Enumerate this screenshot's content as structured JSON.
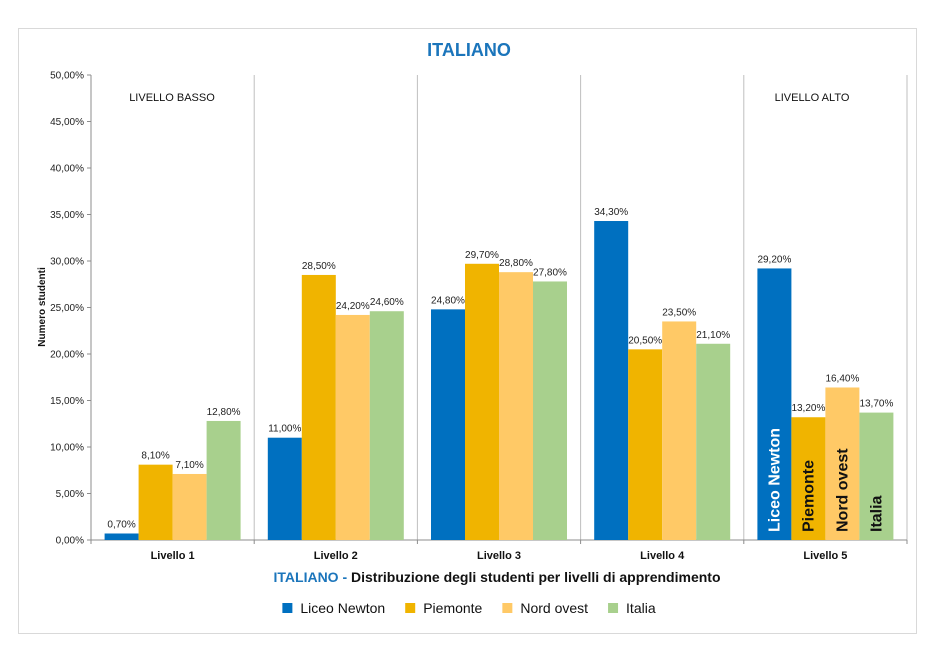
{
  "colors": {
    "accent": "#1b75bb",
    "series": [
      "#0070c0",
      "#f0b400",
      "#ffc966",
      "#a8d08d"
    ],
    "grid": "#bfbfbf",
    "axis": "#8c8c8c"
  },
  "chart_data": {
    "type": "bar",
    "title": "ITALIANO",
    "xtitle_prefix": "ITALIANO - ",
    "xtitle_main": "Distribuzione degli studenti per livelli di apprendimento",
    "ylabel": "Numero studenti",
    "ylim": [
      0,
      50
    ],
    "yticks": [
      "0,00%",
      "5,00%",
      "10,00%",
      "15,00%",
      "20,00%",
      "25,00%",
      "30,00%",
      "35,00%",
      "40,00%",
      "45,00%",
      "50,00%"
    ],
    "categories": [
      "Livello 1",
      "Livello 2",
      "Livello 3",
      "Livello 4",
      "Livello 5"
    ],
    "series": [
      {
        "name": "Liceo Newton",
        "values": [
          0.7,
          11.0,
          24.8,
          34.3,
          29.2
        ],
        "labels": [
          "0,70%",
          "11,00%",
          "24,80%",
          "34,30%",
          "29,20%"
        ]
      },
      {
        "name": "Piemonte",
        "values": [
          8.1,
          28.5,
          29.7,
          20.5,
          13.2
        ],
        "labels": [
          "8,10%",
          "28,50%",
          "29,70%",
          "20,50%",
          "13,20%"
        ]
      },
      {
        "name": "Nord ovest",
        "values": [
          7.1,
          24.2,
          28.8,
          23.5,
          16.4
        ],
        "labels": [
          "7,10%",
          "24,20%",
          "28,80%",
          "23,50%",
          "16,40%"
        ]
      },
      {
        "name": "Italia",
        "values": [
          12.8,
          24.6,
          27.8,
          21.1,
          13.7
        ],
        "labels": [
          "12,80%",
          "24,60%",
          "27,80%",
          "21,10%",
          "13,70%"
        ]
      }
    ],
    "annotations": {
      "low": "LIVELLO BASSO",
      "high": "LIVELLO ALTO",
      "inbar_category": 4
    },
    "grid": "vertical separators between categories",
    "legend_position": "bottom"
  }
}
